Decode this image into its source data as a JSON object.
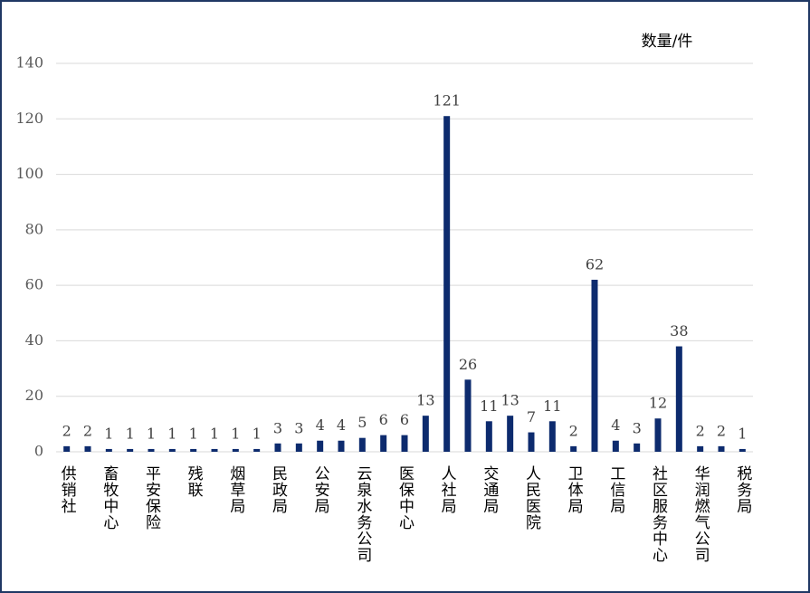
{
  "chart_data": {
    "type": "bar",
    "y_axis_label": "数量/件",
    "categories": [
      "供销社",
      null,
      "畜牧中心",
      null,
      "平安保险",
      null,
      "残联",
      null,
      "烟草局",
      null,
      "民政局",
      null,
      "公安局",
      null,
      "云泉水务公司",
      null,
      "医保中心",
      null,
      "人社局",
      null,
      "交通局",
      null,
      "人民医院",
      null,
      "卫体局",
      null,
      "工信局",
      null,
      "社区服务中心",
      null,
      "华润燃气公司",
      null,
      "税务局"
    ],
    "values": [
      2,
      2,
      1,
      1,
      1,
      1,
      1,
      1,
      1,
      1,
      3,
      3,
      4,
      4,
      5,
      6,
      6,
      13,
      121,
      26,
      11,
      13,
      7,
      11,
      2,
      62,
      4,
      3,
      12,
      38,
      2,
      2,
      1
    ],
    "color": "#0d2b6e",
    "ylim": [
      0,
      140
    ],
    "yticks": [
      0,
      20,
      40,
      60,
      80,
      100,
      120,
      140
    ],
    "grid": true
  }
}
